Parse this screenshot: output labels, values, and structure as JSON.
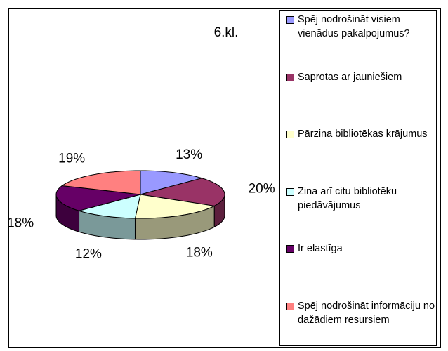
{
  "chart_data": {
    "type": "pie3d",
    "title": "6.kl.",
    "categories": [
      "Spēj nodrošināt visiem vienādus pakalpojumus?",
      "Saprotas ar jauniešiem",
      "Pārzina bibliotēkas krājumus",
      "Zina arī citu bibliotēku piedāvājumus",
      "Ir elastīga",
      "Spēj nodrošināt informāciju no dažādiem resursiem"
    ],
    "values": [
      13,
      20,
      18,
      12,
      18,
      19
    ],
    "value_labels": [
      "13%",
      "20%",
      "18%",
      "12%",
      "18%",
      "19%"
    ],
    "colors": [
      "#9999ff",
      "#993366",
      "#ffffcc",
      "#ccffff",
      "#660066",
      "#ff8080"
    ],
    "legend": "right"
  }
}
